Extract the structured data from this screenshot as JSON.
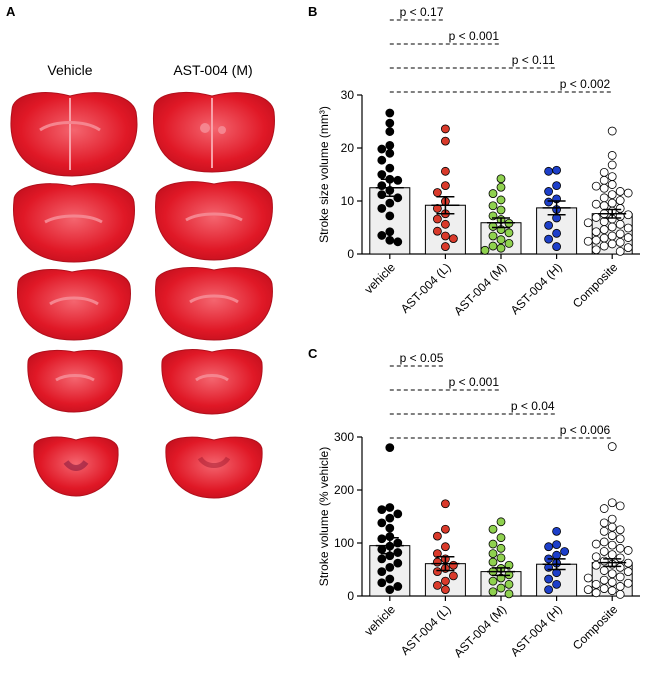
{
  "panel_a": {
    "letter": "A",
    "columns": [
      "Vehicle",
      "AST-004 (M)"
    ]
  },
  "chart_data": [
    {
      "panel": "B",
      "type": "bar",
      "ylabel": "Stroke size volume (mm³)",
      "ylim": [
        0,
        30
      ],
      "yticks": [
        0,
        10,
        20,
        30
      ],
      "categories": [
        "vehicle",
        "AST-004 (L)",
        "AST-004 (M)",
        "AST-004 (H)",
        "Composite"
      ],
      "means": [
        12.5,
        9.2,
        5.9,
        8.7,
        7.6
      ],
      "sem": [
        1.6,
        1.6,
        0.9,
        1.3,
        0.8
      ],
      "point_colors": [
        "#000000",
        "#d93a2b",
        "#8fd14f",
        "#1d3fc9",
        "#ffffff"
      ],
      "points": [
        [
          26.6,
          24.7,
          23.1,
          20.5,
          19.8,
          19.0,
          17.7,
          16.2,
          15.0,
          14.1,
          13.9,
          12.9,
          12.0,
          11.2,
          10.6,
          9.6,
          8.6,
          7.2,
          4.2,
          3.5,
          2.6,
          2.3
        ],
        [
          23.6,
          21.3,
          15.6,
          12.9,
          11.6,
          9.9,
          8.6,
          7.6,
          6.6,
          5.6,
          4.3,
          3.4,
          2.9,
          1.4
        ],
        [
          14.2,
          12.6,
          11.4,
          10.2,
          9.1,
          8.3,
          7.2,
          6.5,
          5.8,
          5.2,
          4.6,
          4.0,
          3.4,
          2.7,
          2.0,
          1.5,
          1.1,
          0.7
        ],
        [
          15.8,
          15.6,
          12.9,
          11.8,
          10.4,
          9.8,
          8.4,
          6.8,
          5.4,
          3.9,
          2.8,
          1.4
        ],
        [
          23.2,
          18.6,
          16.8,
          15.4,
          14.6,
          13.9,
          13.1,
          12.4,
          11.8,
          11.2,
          10.6,
          10.1,
          9.6,
          9.1,
          8.6,
          8.1,
          7.6,
          7.1,
          6.6,
          6.1,
          5.6,
          5.1,
          4.6,
          4.2,
          3.8,
          3.4,
          3.0,
          2.6,
          2.2,
          1.9,
          1.5,
          1.2,
          0.8,
          0.5,
          12.8,
          6.9,
          9.4,
          4.9,
          7.4,
          3.1,
          11.5,
          5.9,
          2.4
        ]
      ],
      "comparisons": [
        {
          "label": "p < 0.17",
          "from": 0,
          "to": 1
        },
        {
          "label": "p < 0.001",
          "from": 0,
          "to": 2
        },
        {
          "label": "p < 0.11",
          "from": 0,
          "to": 3
        },
        {
          "label": "p < 0.002",
          "from": 0,
          "to": 4
        }
      ]
    },
    {
      "panel": "C",
      "type": "bar",
      "ylabel": "Stroke volume (% vehicle)",
      "ylim": [
        0,
        300
      ],
      "yticks": [
        0,
        100,
        200,
        300
      ],
      "categories": [
        "vehicle",
        "AST-004 (L)",
        "AST-004 (M)",
        "AST-004 (H)",
        "Composite"
      ],
      "means": [
        95,
        61,
        46,
        60,
        63
      ],
      "sem": [
        15,
        13,
        7,
        10,
        7
      ],
      "point_colors": [
        "#000000",
        "#d93a2b",
        "#8fd14f",
        "#1d3fc9",
        "#ffffff"
      ],
      "points": [
        [
          280,
          167,
          163,
          155,
          147,
          138,
          128,
          112,
          108,
          100,
          94,
          88,
          82,
          76,
          70,
          62,
          54,
          46,
          32,
          25,
          18,
          12
        ],
        [
          174,
          126,
          113,
          93,
          80,
          70,
          64,
          58,
          52,
          46,
          38,
          28,
          20,
          12
        ],
        [
          140,
          126,
          110,
          98,
          90,
          80,
          72,
          64,
          58,
          52,
          46,
          40,
          34,
          28,
          22,
          15,
          8,
          4
        ],
        [
          122,
          97,
          93,
          84,
          77,
          70,
          62,
          54,
          44,
          32,
          22,
          12
        ],
        [
          282,
          176,
          165,
          145,
          138,
          130,
          122,
          114,
          108,
          102,
          96,
          90,
          84,
          78,
          72,
          66,
          60,
          54,
          48,
          42,
          36,
          30,
          26,
          22,
          18,
          14,
          10,
          6,
          3,
          170,
          125,
          98,
          74,
          58,
          46,
          34,
          24,
          12,
          86,
          62
        ]
      ],
      "comparisons": [
        {
          "label": "p < 0.05",
          "from": 0,
          "to": 1
        },
        {
          "label": "p < 0.001",
          "from": 0,
          "to": 2
        },
        {
          "label": "p < 0.04",
          "from": 0,
          "to": 3
        },
        {
          "label": "p < 0.006",
          "from": 0,
          "to": 4
        }
      ]
    }
  ],
  "colors": {
    "slice_red": "#e01826",
    "slice_light": "#f05a6a",
    "slice_dark": "#b80f1f",
    "bar_fill": "#efefef"
  }
}
